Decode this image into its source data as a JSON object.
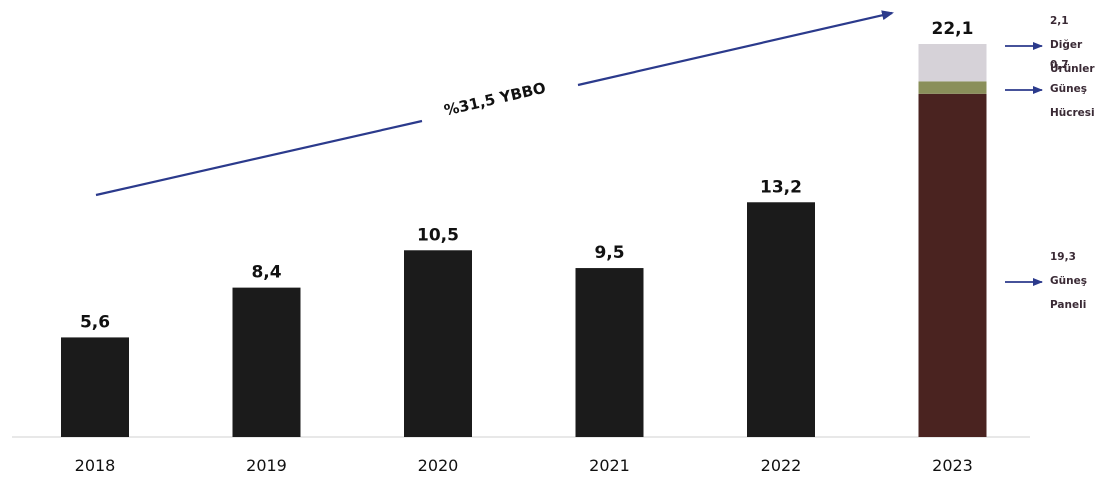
{
  "chart_data": {
    "type": "bar",
    "categories": [
      "2018",
      "2019",
      "2020",
      "2021",
      "2022",
      "2023"
    ],
    "values": [
      5.6,
      8.4,
      10.5,
      9.5,
      13.2,
      22.1
    ],
    "value_labels": [
      "5,6",
      "8,4",
      "10,5",
      "9,5",
      "13,2",
      "22,1"
    ],
    "ylim": [
      0,
      22.1
    ],
    "grid": false,
    "stacked_last": {
      "category": "2023",
      "segments": [
        {
          "value": 19.3,
          "label_value": "19,3",
          "label_lines": [
            "Güneş",
            "Paneli"
          ],
          "color": "#4a2320"
        },
        {
          "value": 0.7,
          "label_value": "0,7",
          "label_lines": [
            "Güneş",
            "Hücresi"
          ],
          "color": "#8a8f5a"
        },
        {
          "value": 2.1,
          "label_value": "2,1",
          "label_lines": [
            "Diğer",
            "Ürünler"
          ],
          "color": "#d6d2d8"
        }
      ]
    },
    "trend_label": "%31,5 YBBO",
    "colors": {
      "bar": "#1b1b1b",
      "arrow": "#2b3a8c",
      "annotation_arrow": "#2b3a8c",
      "axis": "#cccccc"
    }
  }
}
